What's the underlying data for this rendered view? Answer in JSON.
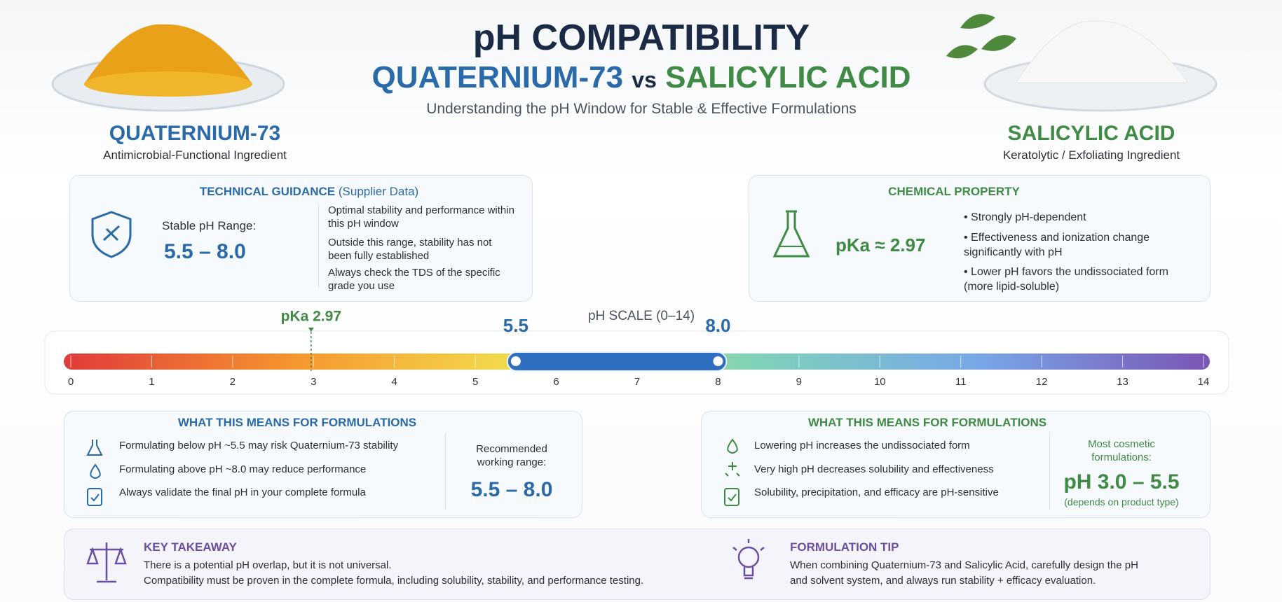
{
  "header": {
    "title": "pH COMPATIBILITY",
    "left": "QUATERNIUM-73",
    "vs": "vs",
    "right": "SALICYLIC ACID",
    "subtitle": "Understanding the pH Window for Stable & Effective Formulations"
  },
  "ingredients": [
    {
      "name": "QUATERNIUM-73",
      "description": "Antimicrobial-Functional Ingredient"
    },
    {
      "name": "SALICYLIC ACID",
      "description": "Keratolytic / Exfoliating Ingredient"
    }
  ],
  "technical_guidance": {
    "title": "TECHNICAL GUIDANCE",
    "title_note": "(Supplier Data)",
    "range_label": "Stable pH Range:",
    "range": "5.5 – 8.0",
    "bullets": [
      "Optimal stability and performance within this pH window",
      "Outside this range, stability has not been fully established",
      "Always check the TDS of the specific grade you use"
    ]
  },
  "chemical_property": {
    "title": "CHEMICAL PROPERTY",
    "pka": "pKa ≈ 2.97",
    "bullets": [
      "Strongly pH-dependent",
      "Effectiveness and ionization change significantly with pH",
      "Lower pH favors the undissociated form (more lipid-soluble)"
    ]
  },
  "ph_scale": {
    "title": "pH SCALE (0–14)",
    "lim": [
      0,
      14
    ],
    "ticks": [
      0,
      1,
      2,
      3,
      4,
      5,
      6,
      7,
      8,
      9,
      10,
      11,
      12,
      13,
      14
    ],
    "range": [
      {
        "value": 5.5,
        "label": "5.5"
      },
      {
        "value": 8,
        "label": "8.0"
      }
    ],
    "pka": {
      "value": 2.97,
      "label": "pKa 2.97"
    }
  },
  "formulations_left": {
    "title": "WHAT THIS MEANS FOR FORMULATIONS",
    "items": [
      "Formulating below pH ~5.5 may risk Quaternium-73 stability",
      "Formulating above pH ~8.0 may reduce performance",
      "Always validate the final pH in your complete formula"
    ],
    "recommended_label": "Recommended working range:",
    "recommended_range": "5.5 – 8.0"
  },
  "formulations_right": {
    "title": "WHAT THIS MEANS FOR FORMULATIONS",
    "items": [
      "Lowering pH increases the undissociated form",
      "Very high pH decreases solubility and effectiveness",
      "Solubility, precipitation, and efficacy are pH-sensitive"
    ],
    "note": "Most cosmetic formulations:",
    "range": "pH 3.0 – 5.5",
    "range_note": "(depends on product type)"
  },
  "key_takeaway": {
    "title": "KEY TAKEAWAY",
    "lines": [
      "There is a potential pH overlap, but it is not universal.",
      "Compatibility must be proven in the complete formula, including solubility, stability, and performance testing."
    ]
  },
  "formulation_tip": {
    "title": "FORMULATION TIP",
    "lines": [
      "When combining Quaternium-73 and Salicylic Acid, carefully design the pH",
      "and solvent system, and always run stability + efficacy evaluation."
    ]
  }
}
